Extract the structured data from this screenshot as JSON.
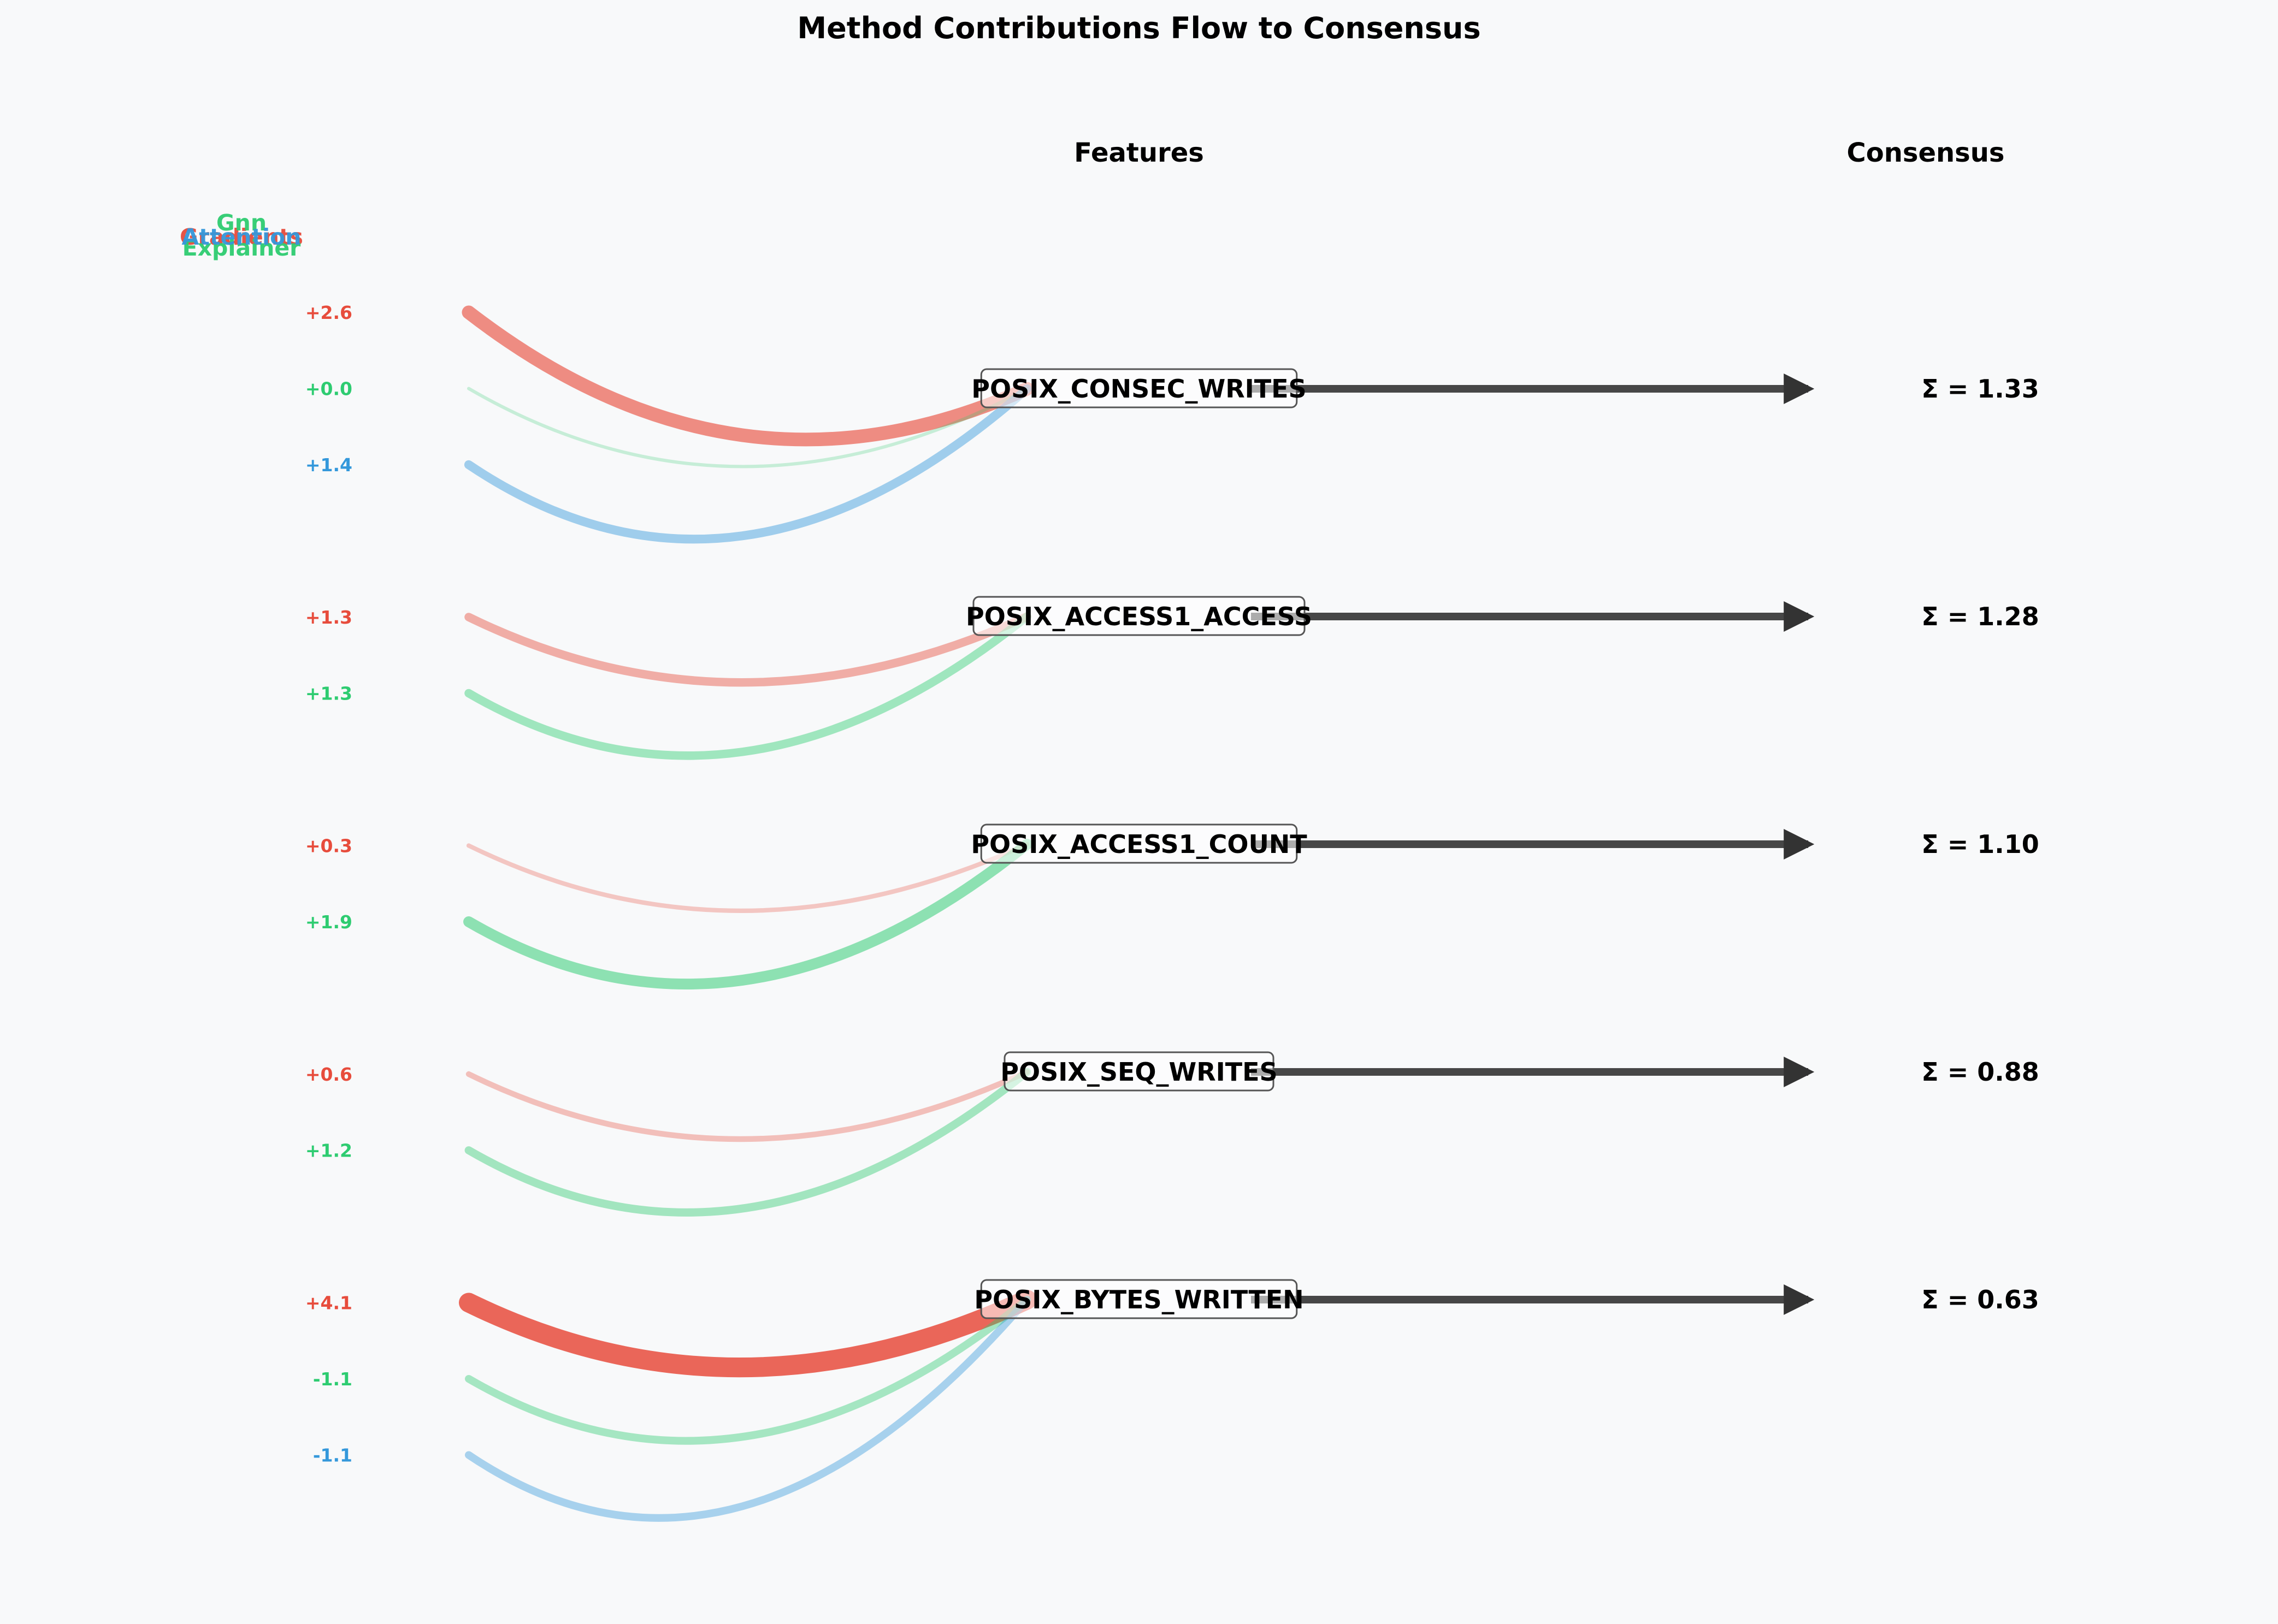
{
  "chart_data": {
    "type": "flow",
    "title": "Method Contributions Flow to Consensus",
    "column_headers": {
      "features": "Features",
      "consensus": "Consensus"
    },
    "methods": [
      {
        "name": "Gradients",
        "color": "#e74c3c"
      },
      {
        "name": "Gnn Explainer",
        "color": "#2ecc71"
      },
      {
        "name": "Attention",
        "color": "#3498db"
      }
    ],
    "method_legend_note": "Method names are drawn overlapping at the top-left in the source image.",
    "features": [
      {
        "name": "POSIX_CONSEC_WRITES",
        "consensus_label": "Σ = 1.33",
        "consensus": 1.33,
        "contributions": [
          {
            "method": "Gradients",
            "label": "+2.6",
            "value": 2.6
          },
          {
            "method": "Gnn Explainer",
            "label": "+0.0",
            "value": 0.0
          },
          {
            "method": "Attention",
            "label": "+1.4",
            "value": 1.4
          }
        ]
      },
      {
        "name": "POSIX_ACCESS1_ACCESS",
        "consensus_label": "Σ = 1.28",
        "consensus": 1.28,
        "contributions": [
          {
            "method": "Gradients",
            "label": "+1.3",
            "value": 1.3
          },
          {
            "method": "Gnn Explainer",
            "label": "+1.3",
            "value": 1.3
          }
        ]
      },
      {
        "name": "POSIX_ACCESS1_COUNT",
        "consensus_label": "Σ = 1.10",
        "consensus": 1.1,
        "contributions": [
          {
            "method": "Gradients",
            "label": "+0.3",
            "value": 0.3
          },
          {
            "method": "Gnn Explainer",
            "label": "+1.9",
            "value": 1.9
          }
        ]
      },
      {
        "name": "POSIX_SEQ_WRITES",
        "consensus_label": "Σ = 0.88",
        "consensus": 0.88,
        "contributions": [
          {
            "method": "Gradients",
            "label": "+0.6",
            "value": 0.6
          },
          {
            "method": "Gnn Explainer",
            "label": "+1.2",
            "value": 1.2
          }
        ]
      },
      {
        "name": "POSIX_BYTES_WRITTEN",
        "consensus_label": "Σ = 0.63",
        "consensus": 0.63,
        "contributions": [
          {
            "method": "Gradients",
            "label": "+4.1",
            "value": 4.1
          },
          {
            "method": "Gnn Explainer",
            "label": "-1.1",
            "value": -1.1
          },
          {
            "method": "Attention",
            "label": "-1.1",
            "value": -1.1
          }
        ]
      }
    ]
  }
}
